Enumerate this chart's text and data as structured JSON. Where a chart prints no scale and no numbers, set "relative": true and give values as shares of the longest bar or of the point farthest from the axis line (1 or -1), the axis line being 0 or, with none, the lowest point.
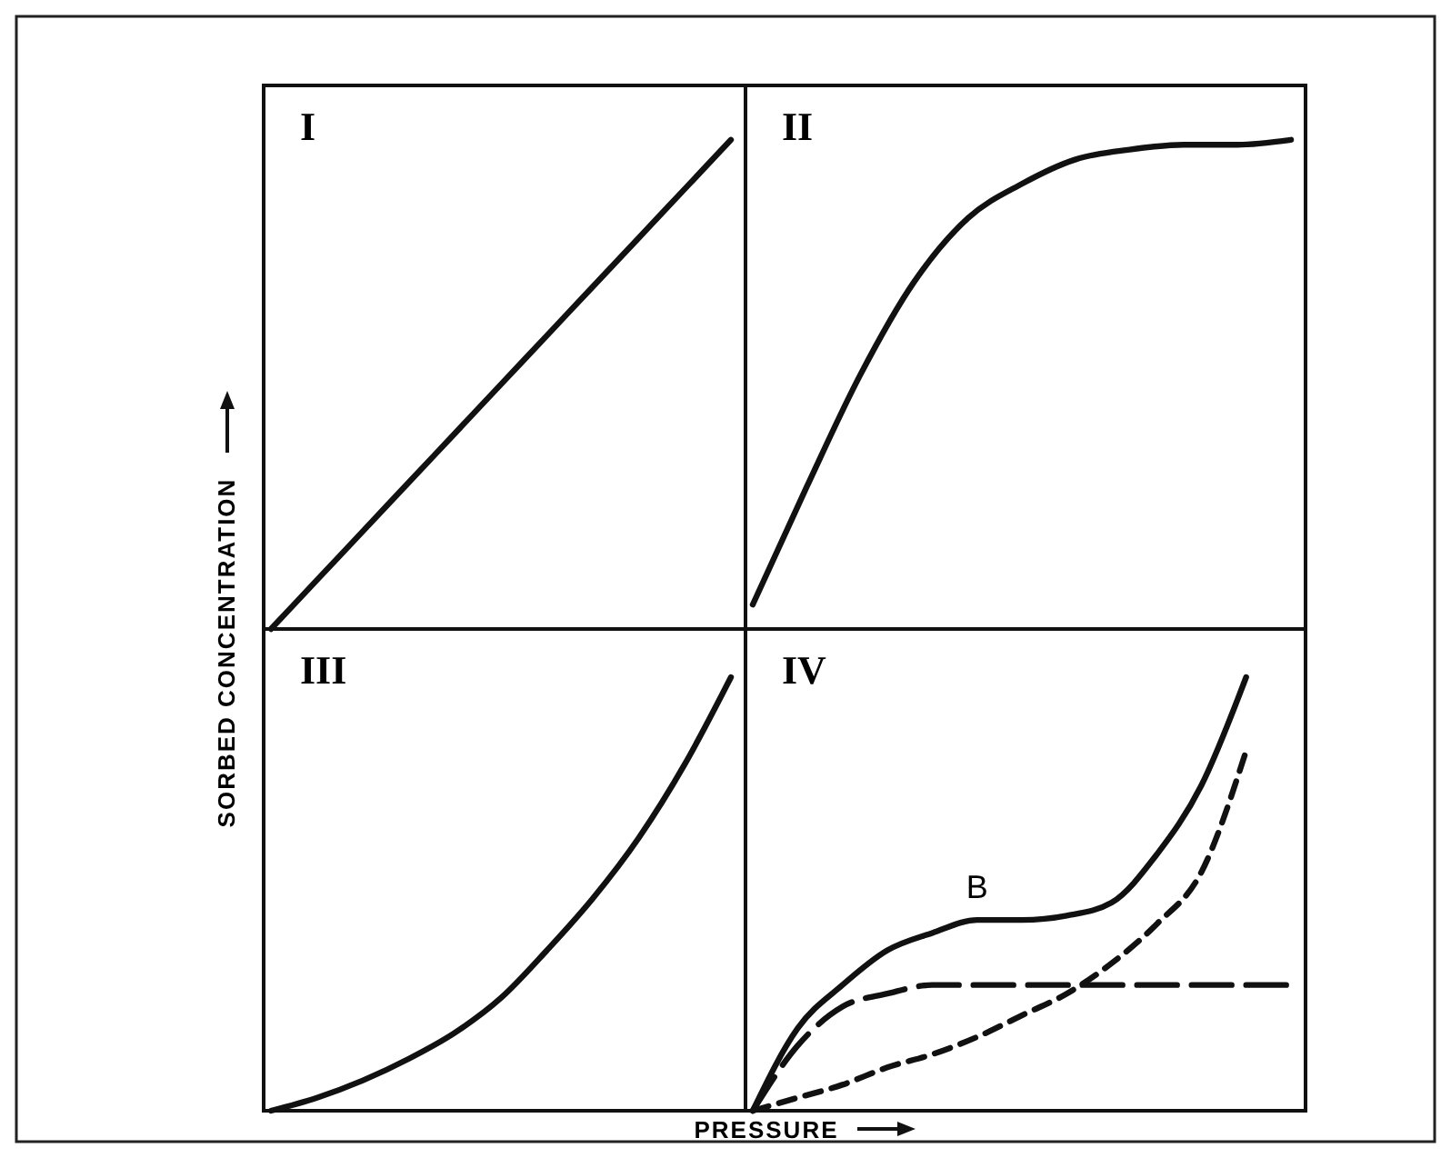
{
  "chart_data": [
    {
      "type": "line",
      "title": "I",
      "ylabel": "SORBED CONCENTRATION",
      "relative": true,
      "categories": [
        null,
        null,
        null,
        null,
        null,
        null,
        null,
        null,
        null,
        null,
        null
      ],
      "series": [
        {
          "color": "#111111",
          "line_style": "solid",
          "values": [
            0,
            0.1,
            0.2,
            0.3,
            0.4,
            0.5,
            0.6,
            0.7,
            0.8,
            0.9,
            1
          ]
        }
      ]
    },
    {
      "type": "line",
      "title": "II",
      "relative": true,
      "categories": [
        null,
        null,
        null,
        null,
        null,
        null,
        null,
        null,
        null,
        null,
        null
      ],
      "series": [
        {
          "color": "#111111",
          "line_style": "solid",
          "values": [
            0.05,
            0.29,
            0.52,
            0.71,
            0.84,
            0.91,
            0.96,
            0.98,
            0.99,
            0.99,
            1
          ]
        }
      ]
    },
    {
      "type": "line",
      "title": "III",
      "xlabel": "PRESSURE",
      "relative": true,
      "categories": [
        null,
        null,
        null,
        null,
        null,
        null,
        null,
        null,
        null,
        null,
        null
      ],
      "series": [
        {
          "color": "#111111",
          "line_style": "solid",
          "values": [
            0,
            0.03,
            0.07,
            0.12,
            0.18,
            0.26,
            0.37,
            0.49,
            0.63,
            0.8,
            1
          ]
        }
      ]
    },
    {
      "type": "line",
      "title": "IV",
      "relative": true,
      "annotations": [
        "B"
      ],
      "categories": [
        null,
        null,
        null,
        null,
        null,
        null,
        null,
        null,
        null,
        null,
        null,
        null,
        null
      ],
      "series": [
        {
          "color": "#111111",
          "line_style": "solid",
          "values": [
            0,
            0.19,
            0.29,
            0.37,
            0.41,
            0.44,
            0.44,
            0.45,
            0.48,
            0.59,
            0.75,
            1,
            null
          ]
        },
        {
          "color": "#111111",
          "line_style": "dashed",
          "values": [
            0,
            0.15,
            0.24,
            0.27,
            0.29,
            0.29,
            0.29,
            0.29,
            0.29,
            0.29,
            0.29,
            0.29,
            0.29
          ]
        },
        {
          "color": "#111111",
          "line_style": "dashed",
          "values": [
            0,
            0.03,
            0.06,
            0.1,
            0.13,
            0.17,
            0.22,
            0.27,
            0.34,
            0.43,
            0.55,
            0.83,
            null
          ]
        }
      ]
    }
  ]
}
